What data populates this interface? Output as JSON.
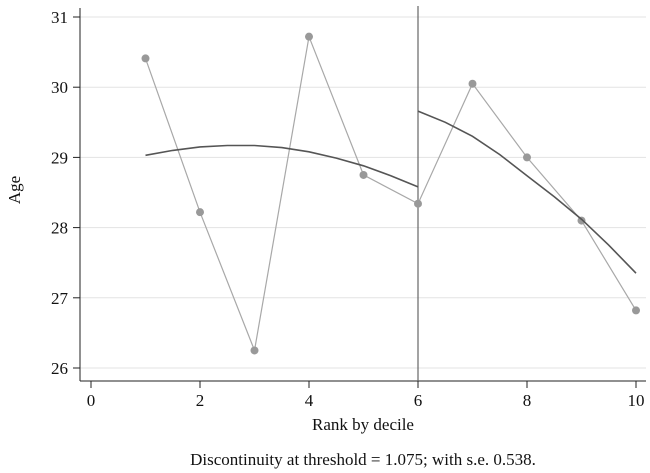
{
  "chart_data": {
    "type": "scatter",
    "xlabel": "Rank by decile",
    "ylabel": "Age",
    "xlim": [
      0,
      10
    ],
    "ylim": [
      26,
      31
    ],
    "x_ticks": [
      "0",
      "2",
      "4",
      "6",
      "8",
      "10"
    ],
    "y_ticks": [
      "26",
      "27",
      "28",
      "29",
      "30",
      "31"
    ],
    "grid": "horizontal",
    "threshold_x": 6,
    "note": "Discontinuity at threshold = 1.075; with s.e. 0.538.",
    "series": [
      {
        "kind": "points-connected",
        "color": "#999999",
        "x": [
          1,
          2,
          3,
          4,
          5,
          6,
          7,
          8,
          9,
          10
        ],
        "y": [
          30.41,
          28.22,
          26.25,
          30.72,
          28.75,
          28.34,
          30.05,
          29.0,
          28.1,
          26.82
        ]
      },
      {
        "kind": "fit-left",
        "color": "#555555",
        "x": [
          1,
          1.5,
          2,
          2.5,
          3,
          3.5,
          4,
          4.5,
          5,
          5.5,
          6
        ],
        "y": [
          29.03,
          29.1,
          29.15,
          29.17,
          29.17,
          29.14,
          29.08,
          28.99,
          28.88,
          28.74,
          28.58
        ]
      },
      {
        "kind": "fit-right",
        "color": "#555555",
        "x": [
          6,
          6.5,
          7,
          7.5,
          8,
          8.5,
          9,
          9.5,
          10
        ],
        "y": [
          29.66,
          29.5,
          29.3,
          29.04,
          28.74,
          28.44,
          28.12,
          27.75,
          27.35
        ]
      }
    ]
  }
}
